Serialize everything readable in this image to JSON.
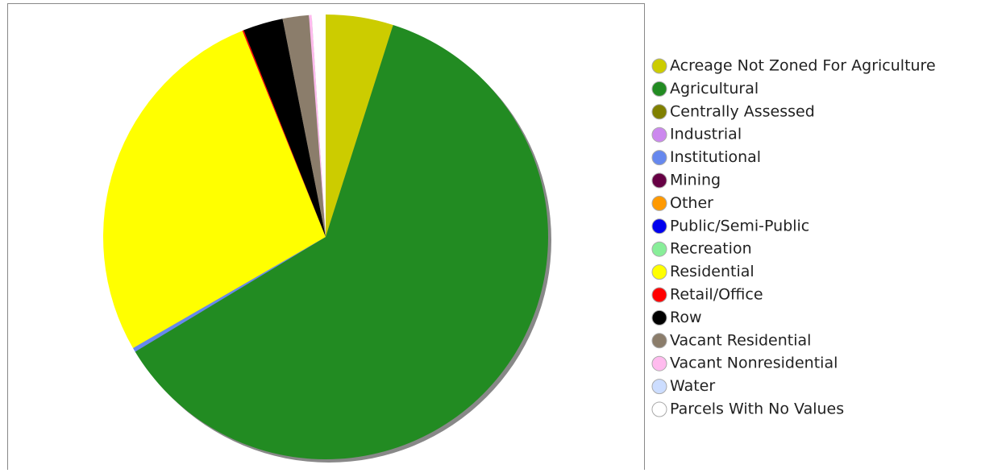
{
  "chart_data": {
    "type": "pie",
    "categories": [
      "Acreage Not Zoned For Agriculture",
      "Agricultural",
      "Centrally Assessed",
      "Industrial",
      "Institutional",
      "Mining",
      "Other",
      "Public/Semi-Public",
      "Recreation",
      "Residential",
      "Retail/Office",
      "Row",
      "Vacant Residential",
      "Vacant Nonresidential",
      "Water",
      "Parcels With No Values"
    ],
    "values": [
      4.9,
      61.4,
      0,
      0,
      0.3,
      0,
      0,
      0,
      0,
      27.2,
      0.1,
      2.9,
      1.9,
      0.2,
      0,
      1.0
    ],
    "colors": [
      "#cccc00",
      "#228b22",
      "#808000",
      "#cc88ee",
      "#6688ee",
      "#660044",
      "#ff9900",
      "#0000ee",
      "#88ee99",
      "#ffff00",
      "#ff0000",
      "#000000",
      "#8b7d6b",
      "#ffbbee",
      "#ccddff",
      "#ffffff"
    ],
    "legend": "right"
  }
}
